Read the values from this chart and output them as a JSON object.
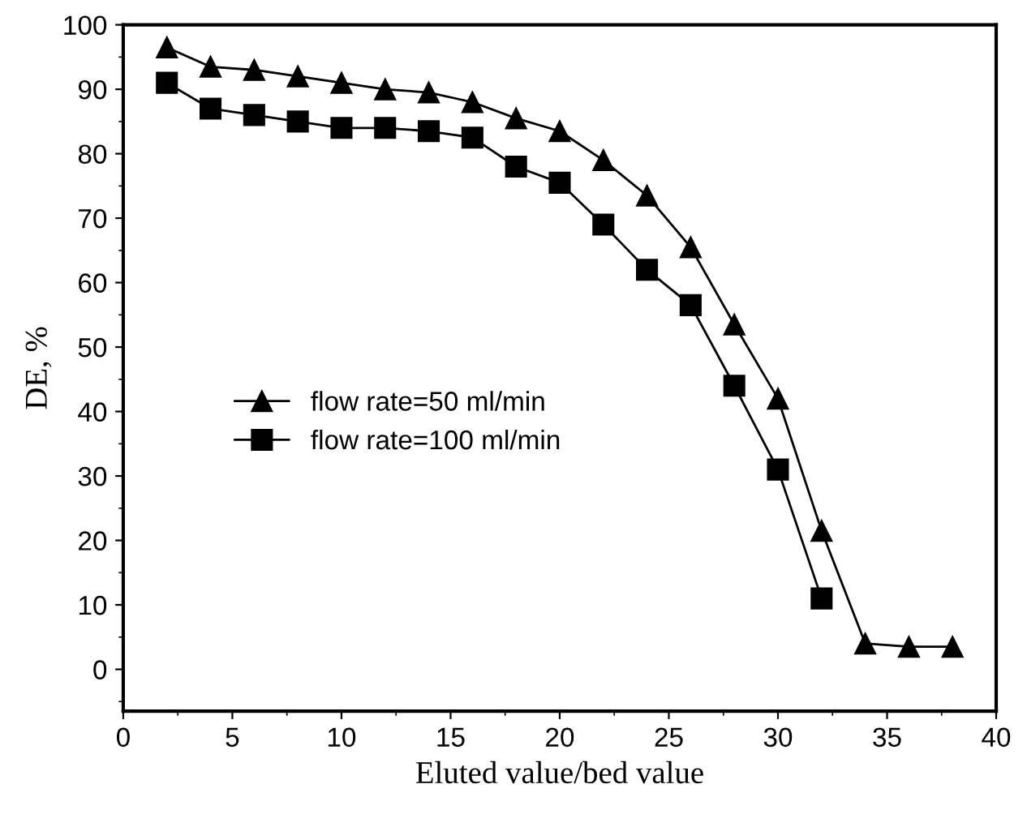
{
  "chart_data": {
    "type": "line",
    "xlabel": "Eluted value/bed value",
    "ylabel": "DE, %",
    "xlim": [
      0,
      40
    ],
    "xticks": [
      0,
      5,
      10,
      15,
      20,
      25,
      30,
      35,
      40
    ],
    "ylim": [
      -6.5,
      100
    ],
    "yticks": [
      0,
      10,
      20,
      30,
      40,
      50,
      60,
      70,
      80,
      90,
      100
    ],
    "legend": "center left",
    "grid": false,
    "line_style": "solid",
    "series": [
      {
        "name": "flow rate=50 ml/min",
        "color": "#000000",
        "marker": "triangle",
        "x": [
          2,
          4,
          6,
          8,
          10,
          12,
          14,
          16,
          18,
          20,
          22,
          24,
          26,
          28,
          30,
          32,
          34,
          36,
          38
        ],
        "values": [
          96.5,
          93.5,
          93,
          92,
          91,
          90,
          89.5,
          88,
          85.5,
          83.5,
          79,
          73.5,
          65.5,
          53.5,
          42,
          21.5,
          4,
          3.5,
          3.5
        ]
      },
      {
        "name": "flow rate=100 ml/min",
        "color": "#000000",
        "marker": "square",
        "x": [
          2,
          4,
          6,
          8,
          10,
          12,
          14,
          16,
          18,
          20,
          22,
          24,
          26,
          28,
          30,
          32
        ],
        "values": [
          91,
          87,
          86,
          85,
          84,
          84,
          83.5,
          82.5,
          78,
          75.5,
          69,
          62,
          56.5,
          44,
          31,
          11
        ]
      }
    ]
  }
}
